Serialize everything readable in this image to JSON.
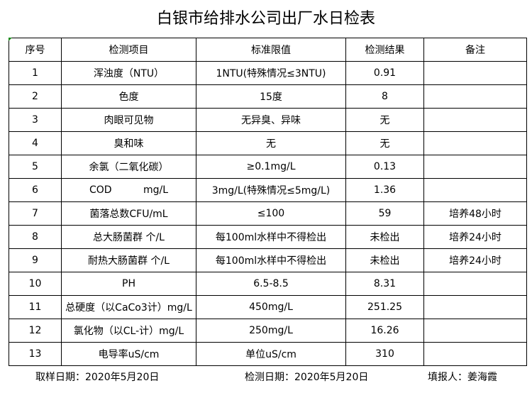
{
  "title": "白银市给排水公司出厂水日检表",
  "table": {
    "header": [
      "序号",
      "检测项目",
      "标准限值",
      "检测结果",
      "备注"
    ],
    "rows": [
      [
        "1",
        "浑浊度（NTU）",
        "1NTU(特殊情况≤3NTU)",
        "0.91",
        ""
      ],
      [
        "2",
        "色度",
        "15度",
        "8",
        ""
      ],
      [
        "3",
        "肉眼可见物",
        "无异臭、异味",
        "无",
        ""
      ],
      [
        "4",
        "臭和味",
        "无",
        "无",
        ""
      ],
      [
        "5",
        "余氯（二氧化碳）",
        "≥0.1mg/L",
        "0.13",
        ""
      ],
      [
        "6",
        "COD          mg/L",
        "3mg/L(特殊情况≤5mg/L)",
        "1.36",
        ""
      ],
      [
        "7",
        "菌落总数CFU/mL",
        "≤100",
        "59",
        "培养48小时"
      ],
      [
        "8",
        "总大肠菌群 个/L",
        "每100ml水样中不得检出",
        "未检出",
        "培养24小时"
      ],
      [
        "9",
        "耐热大肠菌群 个/L",
        "每100ml水样中不得检出",
        "未检出",
        "培养24小时"
      ],
      [
        "10",
        "PH",
        "6.5-8.5",
        "8.31",
        ""
      ],
      [
        "11",
        "总硬度（以CaCo3计）mg/L",
        "450mg/L",
        "251.25",
        ""
      ],
      [
        "12",
        "氯化物（以CL-计）mg/L",
        "250mg/L",
        "16.26",
        ""
      ],
      [
        "13",
        "电导率uS/cm",
        "单位uS/cm",
        "310",
        ""
      ]
    ]
  },
  "footer": [
    "取样日期：2020年5月20日",
    "检测日期：2020年5月20日",
    "填报人：姜海霞"
  ]
}
